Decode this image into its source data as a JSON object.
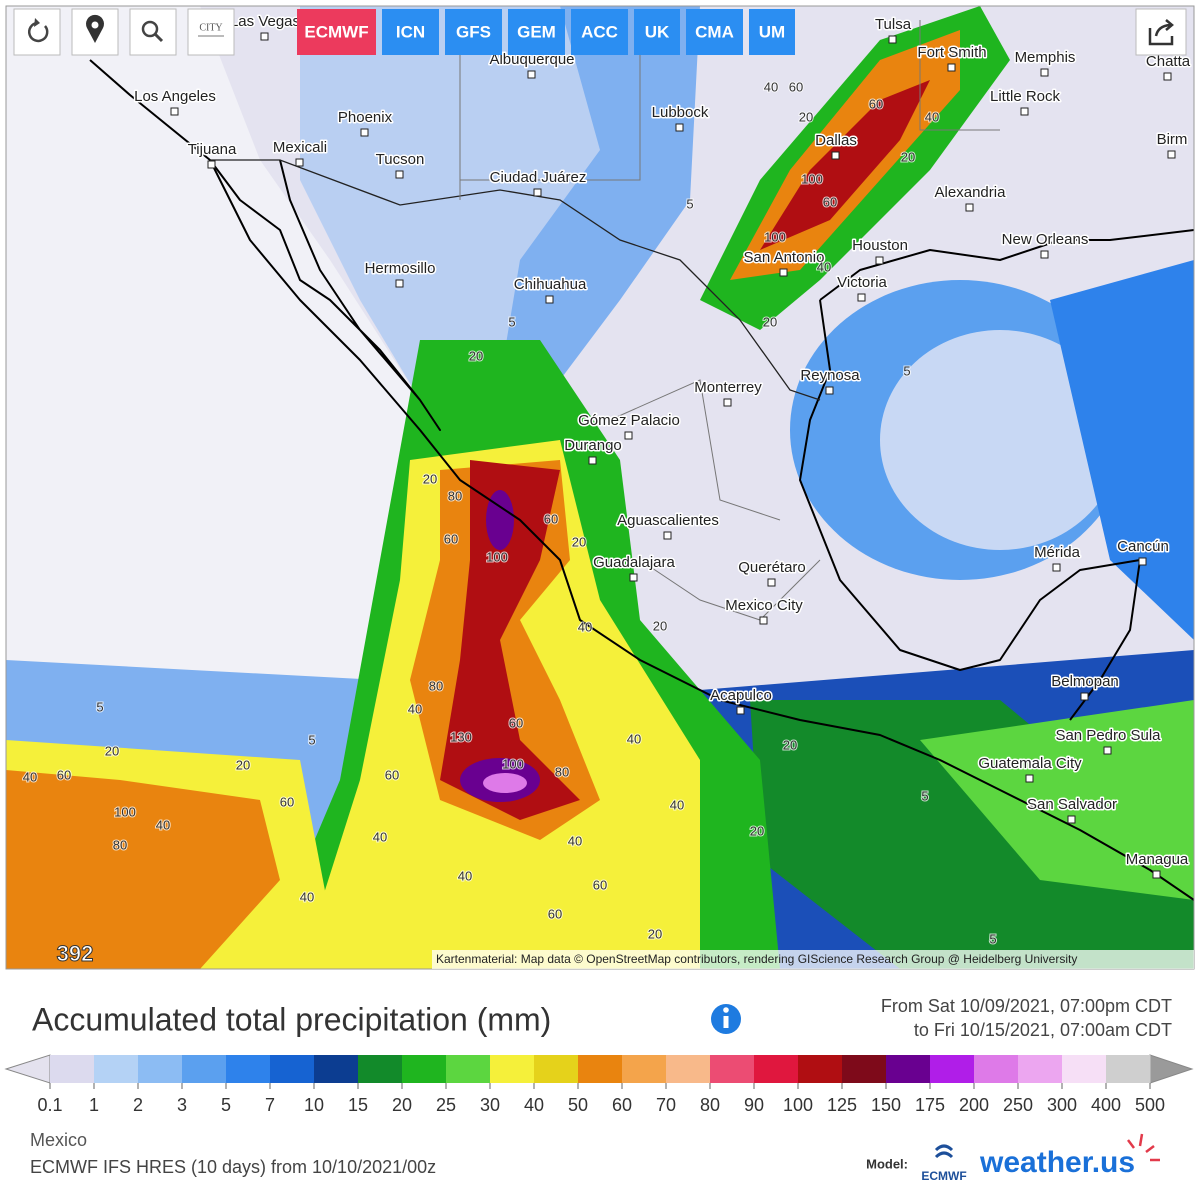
{
  "toolbar": {
    "city_icon_label": "CITY",
    "models": [
      "ECMWF",
      "ICN",
      "GFS",
      "GEM",
      "ACC",
      "UK",
      "CMA",
      "UM"
    ],
    "active_model": "ECMWF"
  },
  "map": {
    "cities": [
      "Las Vegas",
      "Albuquerque",
      "Tulsa",
      "Fort Smith",
      "Memphis",
      "Little Rock",
      "Lubbock",
      "Los Angeles",
      "Phoenix",
      "Mexicali",
      "Tijuana",
      "Tucson",
      "Dallas",
      "Ciudad Juárez",
      "Alexandria",
      "Birm",
      "Chatta",
      "Houston",
      "New Orleans",
      "San Antonio",
      "Victoria",
      "Hermosillo",
      "Chihuahua",
      "Monterrey",
      "Reynosa",
      "Gómez Palacio",
      "Durango",
      "Aguascalientes",
      "Guadalajara",
      "Querétaro",
      "Mexico City",
      "Mérida",
      "Cancún",
      "Acapulco",
      "Belmopan",
      "San Pedro Sula",
      "Guatemala City",
      "San Salvador",
      "Managua"
    ],
    "contour_labels": [
      "40",
      "60",
      "60",
      "40",
      "20",
      "20",
      "100",
      "60",
      "100",
      "40",
      "20",
      "5",
      "5",
      "20",
      "5",
      "20",
      "80",
      "60",
      "100",
      "60",
      "20",
      "40",
      "20",
      "80",
      "40",
      "60",
      "130",
      "100",
      "80",
      "40",
      "20",
      "5",
      "20",
      "40",
      "40",
      "60",
      "40",
      "60",
      "60",
      "20",
      "40",
      "40",
      "60",
      "60",
      "40",
      "20",
      "5",
      "5",
      "100",
      "80",
      "40",
      "20",
      "5"
    ],
    "frame_number": "392",
    "attribution": "Kartenmaterial: Map data © OpenStreetMap contributors, rendering GIScience Research Group @ Heidelberg University"
  },
  "legend": {
    "title": "Accumulated total precipitation (mm)",
    "period": [
      "From Sat 10/09/2021, 07:00pm CDT",
      "to Fri 10/15/2021, 07:00am CDT"
    ],
    "ticks": [
      0.1,
      1,
      2,
      3,
      5,
      7,
      10,
      15,
      20,
      25,
      30,
      40,
      50,
      60,
      70,
      80,
      90,
      100,
      125,
      150,
      175,
      200,
      250,
      300,
      400,
      500
    ],
    "colors": [
      "#dcdaee",
      "#b4d2f5",
      "#8cbcf3",
      "#5ba0ef",
      "#2e82eb",
      "#1663d2",
      "#0c3d91",
      "#128a2a",
      "#1fb51f",
      "#5cd640",
      "#f5f03a",
      "#e5d21b",
      "#e9840f",
      "#f4a44b",
      "#f8b98a",
      "#ec4c73",
      "#e0173e",
      "#b00e12",
      "#7e0a1a",
      "#690090",
      "#b01ee8",
      "#de7ae8",
      "#eca6f0",
      "#f6dff6",
      "#cfcfcf"
    ],
    "under_color": "#e4e2ee",
    "over_color": "#9a9a9a"
  },
  "footer": {
    "region": "Mexico",
    "run": "ECMWF IFS HRES (10 days) from 10/10/2021/00z",
    "model_label": "Model:",
    "ecmwf_logo": "ECMWF",
    "brand": "weather.us"
  }
}
